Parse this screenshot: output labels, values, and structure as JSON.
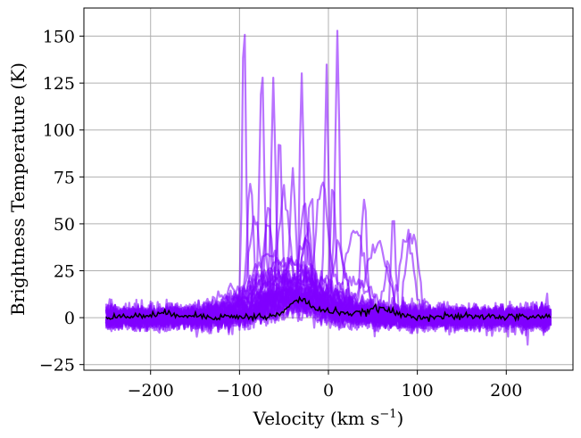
{
  "chart_data": {
    "type": "line",
    "xlabel": "Velocity (km s",
    "xlabel_superscript": "−1",
    "xlabel_suffix": ")",
    "ylabel": "Brightness Temperature (K)",
    "xlim": [
      -275,
      275
    ],
    "ylim": [
      -28,
      165
    ],
    "x_ticks": [
      -200,
      -100,
      0,
      100,
      200
    ],
    "x_tick_labels": [
      "−200",
      "−100",
      "0",
      "100",
      "200"
    ],
    "y_ticks": [
      -25,
      0,
      25,
      50,
      75,
      100,
      125,
      150
    ],
    "y_tick_labels": [
      "−25",
      "0",
      "25",
      "50",
      "75",
      "100",
      "125",
      "150"
    ],
    "grid": true,
    "velocity_range": [
      -250,
      250
    ],
    "noise_rms_K": 3,
    "spectra_color": "#8000ff",
    "mean_color": "#000000",
    "series": [
      {
        "role": "individual spectra",
        "peaks": [
          {
            "center": -95,
            "amplitude": 155,
            "width": 2
          },
          {
            "center": -75,
            "amplitude": 113,
            "width": 2.5
          },
          {
            "center": -62,
            "amplitude": 110,
            "width": 2.5
          },
          {
            "center": -55,
            "amplitude": 82,
            "width": 2.5
          },
          {
            "center": -30,
            "amplitude": 123,
            "width": 2
          },
          {
            "center": -2,
            "amplitude": 122,
            "width": 2
          },
          {
            "center": 10,
            "amplitude": 130,
            "width": 2
          },
          {
            "center": 40,
            "amplitude": 64,
            "width": 3
          },
          {
            "center": 73,
            "amplitude": 55,
            "width": 2.5
          },
          {
            "center": -88,
            "amplitude": 64,
            "width": 3
          },
          {
            "center": -68,
            "amplitude": 60,
            "width": 3
          },
          {
            "center": -40,
            "amplitude": 73,
            "width": 3
          },
          {
            "center": -20,
            "amplitude": 58,
            "width": 3
          },
          {
            "center": 5,
            "amplitude": 70,
            "width": 3
          }
        ]
      },
      {
        "role": "broad components",
        "components": [
          {
            "center": -70,
            "amplitude": 28,
            "width": 15
          },
          {
            "center": -40,
            "amplitude": 20,
            "width": 25
          },
          {
            "center": 30,
            "amplitude": 45,
            "width": 10
          },
          {
            "center": 55,
            "amplitude": 40,
            "width": 12
          },
          {
            "center": 88,
            "amplitude": 42,
            "width": 8
          },
          {
            "center": -50,
            "amplitude": 15,
            "width": 40
          },
          {
            "center": 20,
            "amplitude": 18,
            "width": 30
          }
        ]
      },
      {
        "role": "mean spectrum",
        "components": [
          {
            "center": -32,
            "amplitude": 9,
            "width": 12
          },
          {
            "center": 5,
            "amplitude": 3,
            "width": 15
          },
          {
            "center": 57,
            "amplitude": 4.5,
            "width": 14
          },
          {
            "center": -180,
            "amplitude": 1.5,
            "width": 20
          }
        ],
        "baseline": 0.5
      }
    ]
  }
}
